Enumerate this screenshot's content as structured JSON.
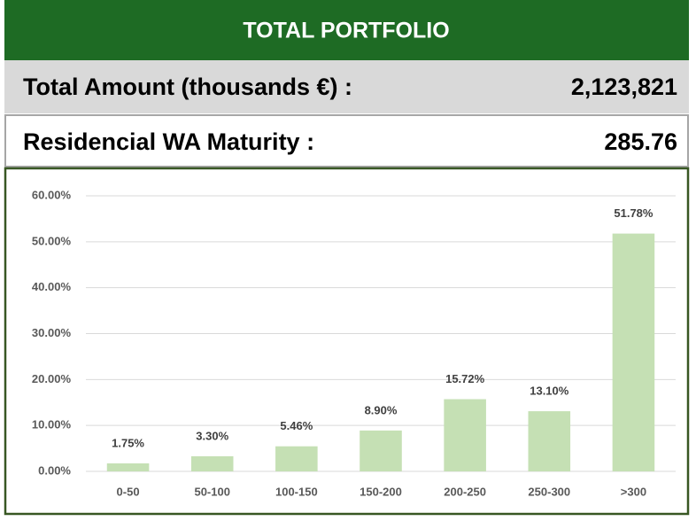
{
  "header": {
    "title": "TOTAL PORTFOLIO",
    "rows": [
      {
        "label": "Total Amount (thousands €) :",
        "value": "2,123,821"
      },
      {
        "label": "Residencial WA Maturity :",
        "value": "285.76"
      }
    ]
  },
  "chart_data": {
    "type": "bar",
    "categories": [
      "0-50",
      "50-100",
      "100-150",
      "150-200",
      "200-250",
      "250-300",
      ">300"
    ],
    "values": [
      1.75,
      3.3,
      5.46,
      8.9,
      15.72,
      13.1,
      51.78
    ],
    "value_labels": [
      "1.75%",
      "3.30%",
      "5.46%",
      "8.90%",
      "15.72%",
      "13.10%",
      "51.78%"
    ],
    "color": "#c5e0b4",
    "ylim": [
      0,
      60
    ],
    "yticks": [
      {
        "value": 0,
        "label": "0.00%"
      },
      {
        "value": 10,
        "label": "10.00%"
      },
      {
        "value": 20,
        "label": "20.00%"
      },
      {
        "value": 30,
        "label": "30.00%"
      },
      {
        "value": 40,
        "label": "40.00%"
      },
      {
        "value": 50,
        "label": "50.00%"
      },
      {
        "value": 60,
        "label": "60.00%"
      }
    ],
    "grid": true
  }
}
